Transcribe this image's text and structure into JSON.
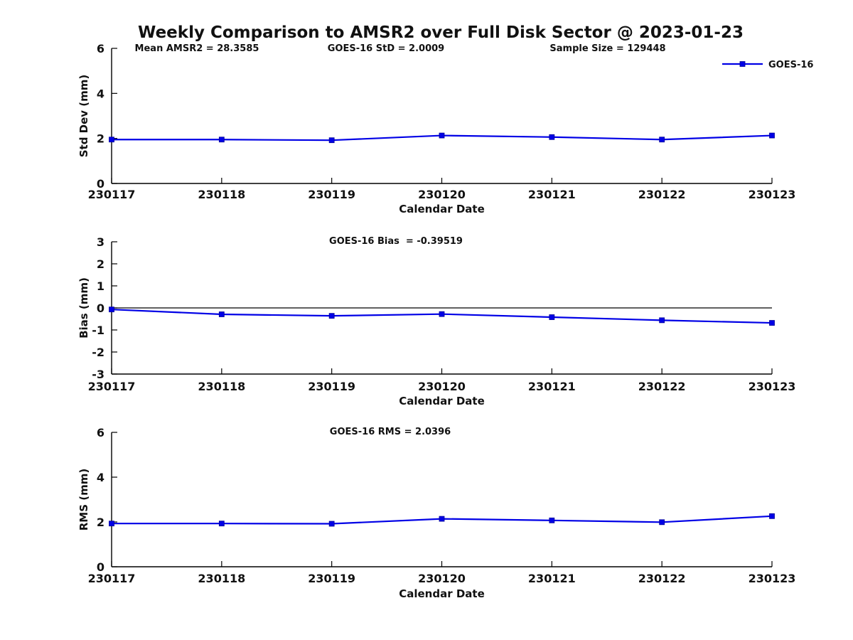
{
  "title": "Weekly Comparison to AMSR2 over Full Disk Sector @ 2023-01-23",
  "accent_color": "#0000e6",
  "chart_data": [
    {
      "type": "line",
      "categories": [
        "230117",
        "230118",
        "230119",
        "230120",
        "230121",
        "230122",
        "230123"
      ],
      "series": [
        {
          "name": "GOES-16",
          "values": [
            1.95,
            1.95,
            1.92,
            2.13,
            2.06,
            1.95,
            2.13
          ]
        }
      ],
      "xlabel": "Calendar Date",
      "ylabel": "Std Dev (mm)",
      "ylim": [
        0,
        6
      ],
      "yticks": [
        0,
        2,
        4,
        6
      ],
      "grid": false,
      "zero_line": false,
      "line_color": "#0000e6",
      "marker": "square",
      "annotations": [
        {
          "text": "Mean AMSR2 = 28.3585",
          "x": 277
        },
        {
          "text": "GOES-16 StD = 2.0009",
          "x": 543
        },
        {
          "text": "Sample Size = 129448",
          "x": 855
        }
      ],
      "legend": {
        "label": "GOES-16",
        "position": "top-right"
      }
    },
    {
      "type": "line",
      "categories": [
        "230117",
        "230118",
        "230119",
        "230120",
        "230121",
        "230122",
        "230123"
      ],
      "series": [
        {
          "name": "GOES-16",
          "values": [
            -0.07,
            -0.29,
            -0.36,
            -0.28,
            -0.42,
            -0.56,
            -0.68
          ]
        }
      ],
      "xlabel": "Calendar Date",
      "ylabel": "Bias (mm)",
      "ylim": [
        -3,
        3
      ],
      "yticks": [
        -3,
        -2,
        -1,
        0,
        1,
        2,
        3
      ],
      "grid": false,
      "zero_line": true,
      "line_color": "#0000e6",
      "marker": "square",
      "annotations": [
        {
          "text": "GOES-16 Bias  = -0.39519",
          "x": 557
        }
      ],
      "legend": null
    },
    {
      "type": "line",
      "categories": [
        "230117",
        "230118",
        "230119",
        "230120",
        "230121",
        "230122",
        "230123"
      ],
      "series": [
        {
          "name": "GOES-16",
          "values": [
            1.93,
            1.93,
            1.92,
            2.14,
            2.07,
            1.99,
            2.26
          ]
        }
      ],
      "xlabel": "Calendar Date",
      "ylabel": "RMS (mm)",
      "ylim": [
        0,
        6
      ],
      "yticks": [
        0,
        2,
        4,
        6
      ],
      "grid": false,
      "zero_line": false,
      "line_color": "#0000e6",
      "marker": "square",
      "annotations": [
        {
          "text": "GOES-16 RMS = 2.0396",
          "x": 549
        }
      ],
      "legend": null
    }
  ]
}
